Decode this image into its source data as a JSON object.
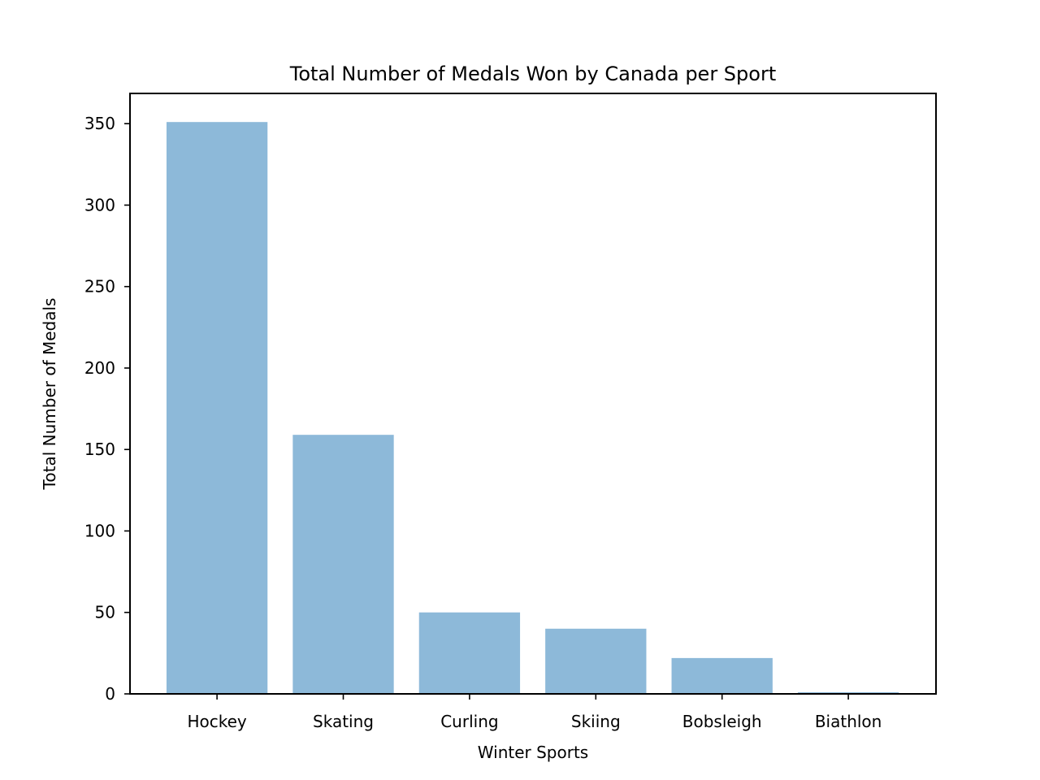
{
  "chart_data": {
    "type": "bar",
    "title": "Total Number of Medals Won by Canada per Sport",
    "xlabel": "Winter Sports",
    "ylabel": "Total Number of Medals",
    "categories": [
      "Hockey",
      "Skating",
      "Curling",
      "Skiing",
      "Bobsleigh",
      "Biathlon"
    ],
    "values": [
      351,
      159,
      50,
      40,
      22,
      1
    ],
    "ylim": [
      0,
      368.55
    ],
    "yticks": [
      0,
      50,
      100,
      150,
      200,
      250,
      300,
      350
    ],
    "ytick_labels": [
      "0",
      "50",
      "100",
      "150",
      "200",
      "250",
      "300",
      "350"
    ],
    "bar_color": "#8db9d9",
    "grid": false,
    "legend": "none"
  }
}
